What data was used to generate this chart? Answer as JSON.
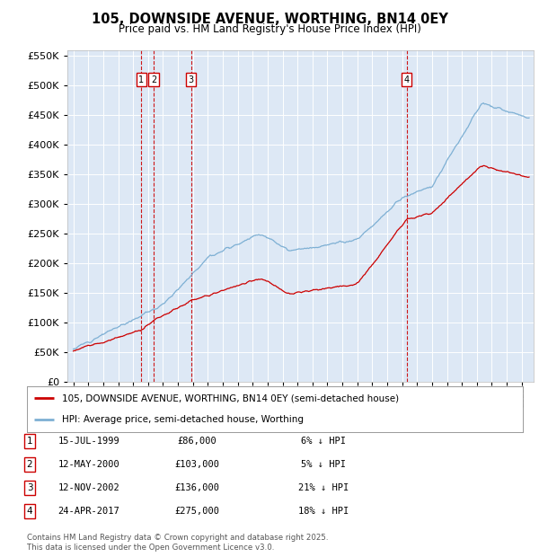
{
  "title": "105, DOWNSIDE AVENUE, WORTHING, BN14 0EY",
  "subtitle": "Price paid vs. HM Land Registry's House Price Index (HPI)",
  "legend_line1": "105, DOWNSIDE AVENUE, WORTHING, BN14 0EY (semi-detached house)",
  "legend_line2": "HPI: Average price, semi-detached house, Worthing",
  "red_line_color": "#cc0000",
  "blue_line_color": "#7eb0d4",
  "plot_bg_color": "#dde8f5",
  "transactions": [
    {
      "id": 1,
      "date": "15-JUL-1999",
      "price": 86000,
      "pct": "6%",
      "x_year": 1999.54
    },
    {
      "id": 2,
      "date": "12-MAY-2000",
      "price": 103000,
      "pct": "5%",
      "x_year": 2000.37
    },
    {
      "id": 3,
      "date": "12-NOV-2002",
      "price": 136000,
      "pct": "21%",
      "x_year": 2002.87
    },
    {
      "id": 4,
      "date": "24-APR-2017",
      "price": 275000,
      "pct": "18%",
      "x_year": 2017.32
    }
  ],
  "footer": "Contains HM Land Registry data © Crown copyright and database right 2025.\nThis data is licensed under the Open Government Licence v3.0.",
  "ylim_max": 560000,
  "ytick_step": 50000,
  "xlim_start": 1994.6,
  "xlim_end": 2025.8
}
